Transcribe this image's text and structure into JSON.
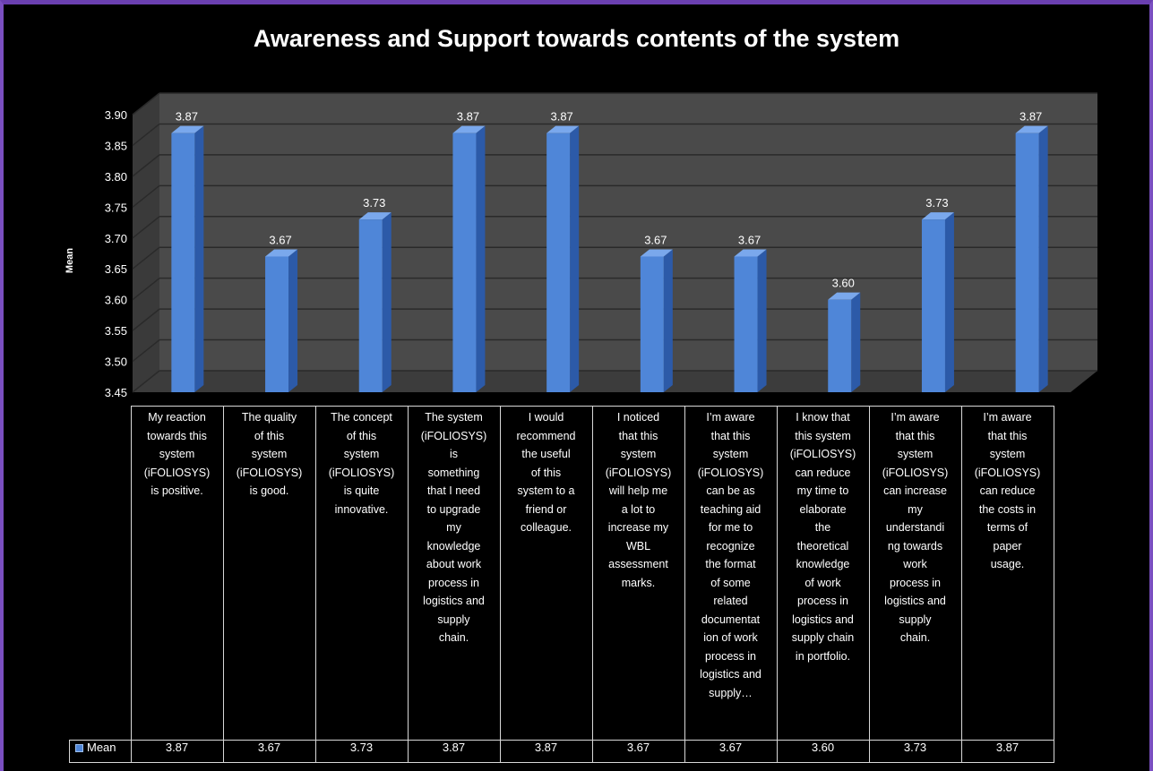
{
  "chart_data": {
    "type": "bar",
    "title": "Awareness and Support towards contents of the system",
    "ylabel": "Mean",
    "xlabel": "",
    "ylim": [
      3.45,
      3.9
    ],
    "yticks": [
      "3.90",
      "3.85",
      "3.80",
      "3.75",
      "3.70",
      "3.65",
      "3.60",
      "3.55",
      "3.50",
      "3.45"
    ],
    "grid": true,
    "categories": [
      "My reaction towards this system (iFOLIOSYS) is positive.",
      "The quality of this system (iFOLIOSYS) is good.",
      "The concept of this system (iFOLIOSYS) is quite innovative.",
      "The system (iFOLIOSYS) is something that I need to upgrade my knowledge about work process in logistics and supply chain.",
      "I would recommend the useful of this system to a friend or colleague.",
      "I noticed that this system (iFOLIOSYS) will help me a lot to increase my WBL assessment marks.",
      "I’m aware that this system (iFOLIOSYS) can be as teaching aid for me to recognize the format of some related documentation of work process in logistics and supply…",
      "I know that this system (iFOLIOSYS) can reduce my time to elaborate the theoretical knowledge of work process in logistics and supply chain in portfolio.",
      "I’m aware that this system (iFOLIOSYS) can increase my understanding towards work process in logistics and supply chain.",
      "I’m aware that this system (iFOLIOSYS) can reduce the costs in terms of paper usage."
    ],
    "category_lines": [
      [
        "My reaction",
        "towards this",
        "system",
        "(iFOLIOSYS)",
        "is positive."
      ],
      [
        "The quality",
        "of this",
        "system",
        "(iFOLIOSYS)",
        "is good."
      ],
      [
        "The concept",
        "of this",
        "system",
        "(iFOLIOSYS)",
        "is quite",
        "innovative."
      ],
      [
        "The system",
        "(iFOLIOSYS)",
        "is",
        "something",
        "that I need",
        "to upgrade",
        "my",
        "knowledge",
        "about work",
        "process in",
        "logistics and",
        "supply",
        "chain."
      ],
      [
        "I would",
        "recommend",
        "the useful",
        "of this",
        "system to a",
        "friend or",
        "colleague."
      ],
      [
        "I noticed",
        "that this",
        "system",
        "(iFOLIOSYS)",
        "will help me",
        "a lot to",
        "increase my",
        "WBL",
        "assessment",
        "marks."
      ],
      [
        "I’m aware",
        "that this",
        "system",
        "(iFOLIOSYS)",
        "can be as",
        "teaching aid",
        "for me to",
        "recognize",
        "the format",
        "of some",
        "related",
        "documentat",
        "ion of work",
        "process in",
        "logistics and",
        "supply…"
      ],
      [
        "I know that",
        "this system",
        "(iFOLIOSYS)",
        "can reduce",
        "my time to",
        "elaborate",
        "the",
        "theoretical",
        "knowledge",
        "of work",
        "process in",
        "logistics and",
        "supply chain",
        "in portfolio."
      ],
      [
        "I’m aware",
        "that this",
        "system",
        "(iFOLIOSYS)",
        "can increase",
        "my",
        "understandi",
        "ng towards",
        "work",
        "process in",
        "logistics and",
        "supply",
        "chain."
      ],
      [
        "I’m aware",
        "that this",
        "system",
        "(iFOLIOSYS)",
        "can reduce",
        "the costs in",
        "terms of",
        "paper",
        "usage."
      ]
    ],
    "series": [
      {
        "name": "Mean",
        "values": [
          3.87,
          3.67,
          3.73,
          3.87,
          3.87,
          3.67,
          3.67,
          3.6,
          3.73,
          3.87
        ],
        "labels": [
          "3.87",
          "3.67",
          "3.73",
          "3.87",
          "3.87",
          "3.67",
          "3.67",
          "3.60",
          "3.73",
          "3.87"
        ]
      }
    ],
    "colors": {
      "background": "#000000",
      "bar_front": "#4f86d8",
      "bar_side": "#2c5aa8",
      "bar_top": "#7aa8ec",
      "plot_wall": "#4a4a4a",
      "grid": "#2a2a2a",
      "text": "#ffffff"
    },
    "legend": "table-left"
  }
}
